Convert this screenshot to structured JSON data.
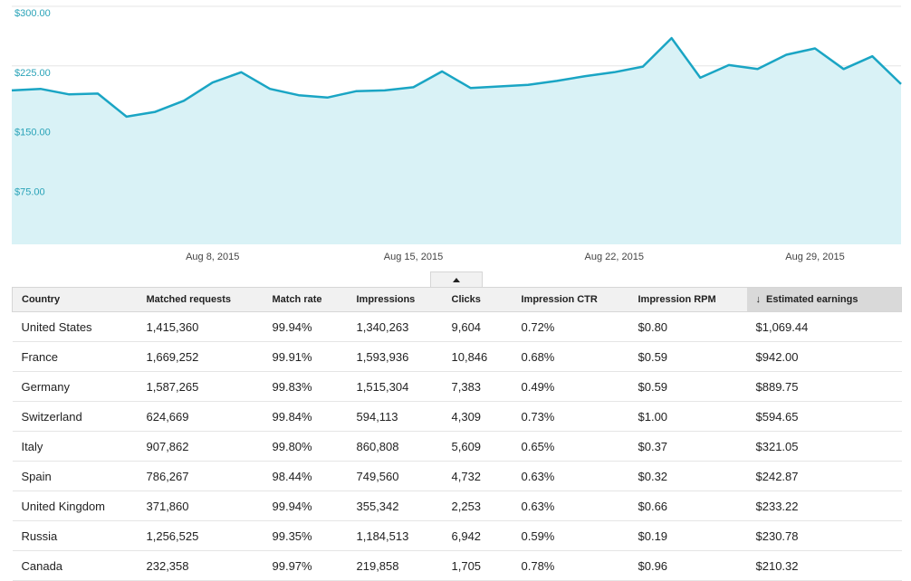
{
  "chart_data": {
    "type": "area",
    "y_ticks": [
      {
        "value": 300,
        "label": "$300.00"
      },
      {
        "value": 225,
        "label": "$225.00"
      },
      {
        "value": 150,
        "label": "$150.00"
      },
      {
        "value": 75,
        "label": "$75.00"
      }
    ],
    "ylim": [
      0,
      300
    ],
    "x_ticks": [
      {
        "day": 7,
        "label": "Aug 8, 2015"
      },
      {
        "day": 14,
        "label": "Aug 15, 2015"
      },
      {
        "day": 21,
        "label": "Aug 22, 2015"
      },
      {
        "day": 28,
        "label": "Aug 29, 2015"
      }
    ],
    "series": [
      {
        "name": "Estimated earnings",
        "values": [
          194,
          196,
          189,
          190,
          161,
          167,
          181,
          204,
          217,
          196,
          188,
          185,
          193,
          194,
          198,
          218,
          197,
          199,
          201,
          206,
          212,
          217,
          224,
          260,
          210,
          226,
          221,
          239,
          247,
          221,
          237,
          202
        ]
      }
    ],
    "line_color": "#1aa5c4",
    "fill_color": "#d9f2f6",
    "label_color": "#2aa3b8"
  },
  "table": {
    "sort_arrow": "↓",
    "columns": [
      "Country",
      "Matched requests",
      "Match rate",
      "Impressions",
      "Clicks",
      "Impression CTR",
      "Impression RPM",
      "Estimated earnings"
    ],
    "rows": [
      [
        "United States",
        "1,415,360",
        "99.94%",
        "1,340,263",
        "9,604",
        "0.72%",
        "$0.80",
        "$1,069.44"
      ],
      [
        "France",
        "1,669,252",
        "99.91%",
        "1,593,936",
        "10,846",
        "0.68%",
        "$0.59",
        "$942.00"
      ],
      [
        "Germany",
        "1,587,265",
        "99.83%",
        "1,515,304",
        "7,383",
        "0.49%",
        "$0.59",
        "$889.75"
      ],
      [
        "Switzerland",
        "624,669",
        "99.84%",
        "594,113",
        "4,309",
        "0.73%",
        "$1.00",
        "$594.65"
      ],
      [
        "Italy",
        "907,862",
        "99.80%",
        "860,808",
        "5,609",
        "0.65%",
        "$0.37",
        "$321.05"
      ],
      [
        "Spain",
        "786,267",
        "98.44%",
        "749,560",
        "4,732",
        "0.63%",
        "$0.32",
        "$242.87"
      ],
      [
        "United Kingdom",
        "371,860",
        "99.94%",
        "355,342",
        "2,253",
        "0.63%",
        "$0.66",
        "$233.22"
      ],
      [
        "Russia",
        "1,256,525",
        "99.35%",
        "1,184,513",
        "6,942",
        "0.59%",
        "$0.19",
        "$230.78"
      ],
      [
        "Canada",
        "232,358",
        "99.97%",
        "219,858",
        "1,705",
        "0.78%",
        "$0.96",
        "$210.32"
      ]
    ]
  }
}
